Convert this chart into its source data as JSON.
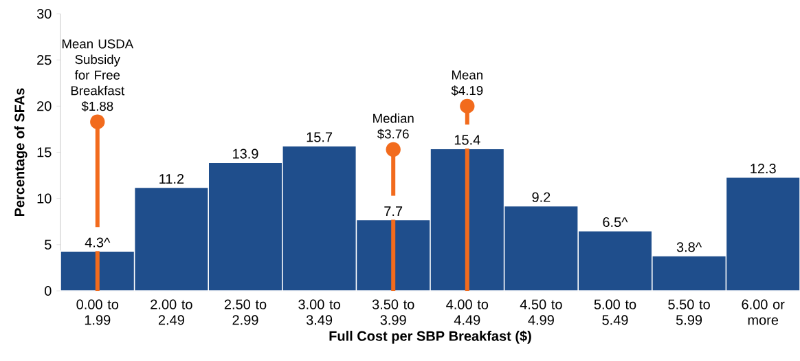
{
  "chart_data": {
    "type": "bar",
    "xlabel": "Full Cost per SBP Breakfast ($)",
    "ylabel": "Percentage of SFAs",
    "categories": [
      "0.00 to 1.99",
      "2.00 to 2.49",
      "2.50 to 2.99",
      "3.00 to 3.49",
      "3.50 to 3.99",
      "4.00 to 4.49",
      "4.50 to 4.99",
      "5.00 to 5.49",
      "5.50 to 5.99",
      "6.00 or more"
    ],
    "values": [
      4.3,
      11.2,
      13.9,
      15.7,
      7.7,
      15.4,
      9.2,
      6.5,
      3.8,
      12.3
    ],
    "value_labels": [
      "4.3^",
      "11.2",
      "13.9",
      "15.7",
      "7.7",
      "15.4",
      "9.2",
      "6.5^",
      "3.8^",
      "12.3"
    ],
    "color": "#1f4e8c",
    "ylim": [
      0,
      30
    ],
    "yticks": [
      0,
      5,
      10,
      15,
      20,
      25,
      30
    ],
    "annotations": [
      {
        "text": "Mean USDA Subsidy for Free Breakfast $1.88",
        "x": "0.00 to 1.99",
        "y": 18.3
      },
      {
        "text": "Median $3.76",
        "x": "3.50 to 3.99",
        "y": 15.3
      },
      {
        "text": "Mean $4.19",
        "x": "4.00 to 4.49",
        "y": 20
      }
    ]
  }
}
